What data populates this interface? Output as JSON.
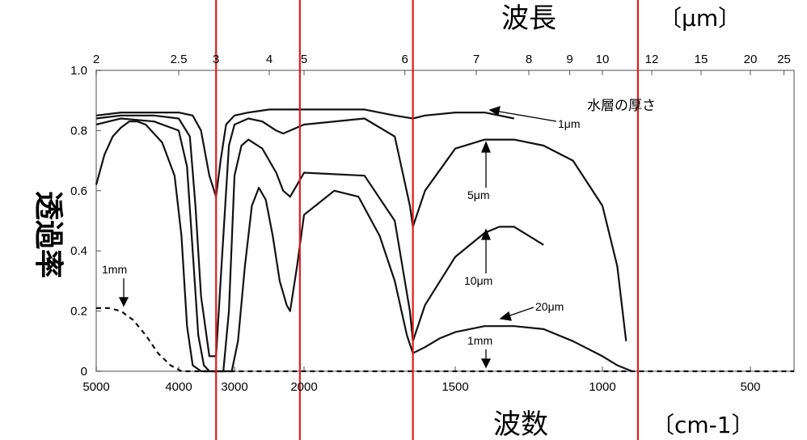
{
  "chart_data": {
    "type": "line",
    "title_top": "波長",
    "title_top_unit": "〔μm〕",
    "title_bottom": "波数",
    "title_bottom_unit": "〔cm-1〕",
    "ylabel": "透過率",
    "x_wavenumber_ticks": [
      "5000",
      "4000",
      "3000",
      "2000",
      "1500",
      "1000",
      "500"
    ],
    "x_wavelength_ticks": [
      "2",
      "2.5",
      "3",
      "4",
      "5",
      "6",
      "7",
      "8",
      "9",
      "10",
      "12",
      "15",
      "20",
      "25"
    ],
    "y_ticks": [
      "0",
      "0.2",
      "0.4",
      "0.6",
      "0.8",
      "1.0"
    ],
    "xlim_wavenumber": [
      5000,
      370
    ],
    "ylim": [
      0,
      1.0
    ],
    "legend_title": "水層の厚さ",
    "red_lines_wavenumber": [
      3330,
      2060,
      1640,
      880
    ],
    "series": [
      {
        "name": "1μm",
        "dashed": false,
        "points": [
          [
            5000,
            0.85
          ],
          [
            4700,
            0.86
          ],
          [
            4300,
            0.86
          ],
          [
            4000,
            0.86
          ],
          [
            3750,
            0.85
          ],
          [
            3600,
            0.8
          ],
          [
            3450,
            0.65
          ],
          [
            3330,
            0.58
          ],
          [
            3250,
            0.7
          ],
          [
            3150,
            0.82
          ],
          [
            3000,
            0.85
          ],
          [
            2800,
            0.86
          ],
          [
            2500,
            0.87
          ],
          [
            2300,
            0.87
          ],
          [
            2100,
            0.87
          ],
          [
            2000,
            0.87
          ],
          [
            1800,
            0.87
          ],
          [
            1700,
            0.85
          ],
          [
            1640,
            0.84
          ],
          [
            1600,
            0.85
          ],
          [
            1500,
            0.86
          ],
          [
            1400,
            0.86
          ],
          [
            1300,
            0.84
          ]
        ]
      },
      {
        "name": "5μm",
        "dashed": false,
        "points": [
          [
            5000,
            0.84
          ],
          [
            4700,
            0.85
          ],
          [
            4300,
            0.85
          ],
          [
            4000,
            0.84
          ],
          [
            3800,
            0.78
          ],
          [
            3700,
            0.55
          ],
          [
            3600,
            0.25
          ],
          [
            3450,
            0.05
          ],
          [
            3330,
            0.05
          ],
          [
            3250,
            0.3
          ],
          [
            3100,
            0.75
          ],
          [
            3000,
            0.82
          ],
          [
            2800,
            0.84
          ],
          [
            2600,
            0.83
          ],
          [
            2400,
            0.8
          ],
          [
            2300,
            0.79
          ],
          [
            2200,
            0.8
          ],
          [
            2000,
            0.82
          ],
          [
            1800,
            0.84
          ],
          [
            1700,
            0.78
          ],
          [
            1650,
            0.55
          ],
          [
            1640,
            0.48
          ],
          [
            1600,
            0.6
          ],
          [
            1500,
            0.74
          ],
          [
            1400,
            0.77
          ],
          [
            1300,
            0.77
          ],
          [
            1200,
            0.75
          ],
          [
            1100,
            0.7
          ],
          [
            1000,
            0.55
          ],
          [
            950,
            0.35
          ],
          [
            920,
            0.1
          ]
        ]
      },
      {
        "name": "10μm",
        "dashed": false,
        "points": [
          [
            5000,
            0.82
          ],
          [
            4700,
            0.84
          ],
          [
            4300,
            0.83
          ],
          [
            4000,
            0.8
          ],
          [
            3850,
            0.68
          ],
          [
            3750,
            0.4
          ],
          [
            3650,
            0.12
          ],
          [
            3550,
            0.02
          ],
          [
            3450,
            0.0
          ],
          [
            3200,
            0.0
          ],
          [
            3100,
            0.2
          ],
          [
            3000,
            0.65
          ],
          [
            2900,
            0.75
          ],
          [
            2800,
            0.77
          ],
          [
            2600,
            0.74
          ],
          [
            2400,
            0.66
          ],
          [
            2300,
            0.6
          ],
          [
            2200,
            0.58
          ],
          [
            2100,
            0.62
          ],
          [
            2000,
            0.66
          ],
          [
            1800,
            0.65
          ],
          [
            1700,
            0.5
          ],
          [
            1650,
            0.2
          ],
          [
            1640,
            0.1
          ],
          [
            1600,
            0.22
          ],
          [
            1500,
            0.38
          ],
          [
            1400,
            0.46
          ],
          [
            1350,
            0.48
          ],
          [
            1300,
            0.48
          ],
          [
            1250,
            0.45
          ],
          [
            1200,
            0.42
          ]
        ]
      },
      {
        "name": "20μm",
        "dashed": false,
        "points": [
          [
            5000,
            0.62
          ],
          [
            4900,
            0.72
          ],
          [
            4800,
            0.78
          ],
          [
            4700,
            0.81
          ],
          [
            4600,
            0.83
          ],
          [
            4500,
            0.83
          ],
          [
            4400,
            0.82
          ],
          [
            4200,
            0.76
          ],
          [
            4050,
            0.65
          ],
          [
            3950,
            0.45
          ],
          [
            3850,
            0.15
          ],
          [
            3750,
            0.02
          ],
          [
            3600,
            0.0
          ],
          [
            3050,
            0.0
          ],
          [
            2950,
            0.1
          ],
          [
            2850,
            0.35
          ],
          [
            2750,
            0.55
          ],
          [
            2650,
            0.61
          ],
          [
            2550,
            0.57
          ],
          [
            2450,
            0.45
          ],
          [
            2350,
            0.3
          ],
          [
            2250,
            0.22
          ],
          [
            2200,
            0.2
          ],
          [
            2100,
            0.35
          ],
          [
            2000,
            0.52
          ],
          [
            1900,
            0.6
          ],
          [
            1820,
            0.58
          ],
          [
            1750,
            0.45
          ],
          [
            1700,
            0.3
          ],
          [
            1660,
            0.12
          ],
          [
            1640,
            0.06
          ],
          [
            1600,
            0.08
          ],
          [
            1550,
            0.11
          ],
          [
            1500,
            0.13
          ],
          [
            1400,
            0.15
          ],
          [
            1300,
            0.15
          ],
          [
            1200,
            0.14
          ],
          [
            1100,
            0.1
          ],
          [
            1000,
            0.05
          ],
          [
            950,
            0.02
          ],
          [
            900,
            0.0
          ]
        ]
      },
      {
        "name": "1mm",
        "dashed": true,
        "points": [
          [
            5000,
            0.21
          ],
          [
            4850,
            0.21
          ],
          [
            4700,
            0.2
          ],
          [
            4550,
            0.17
          ],
          [
            4400,
            0.12
          ],
          [
            4250,
            0.06
          ],
          [
            4100,
            0.02
          ],
          [
            3950,
            0.0
          ],
          [
            2000,
            0.0
          ],
          [
            1000,
            0.0
          ],
          [
            370,
            0.0
          ]
        ]
      }
    ],
    "annotations": [
      "1μm",
      "5μm",
      "10μm",
      "20μm",
      "1mm",
      "1mm"
    ]
  },
  "colors": {
    "red_line": "#e01b1b",
    "curve": "#111111",
    "frame": "#888888"
  }
}
